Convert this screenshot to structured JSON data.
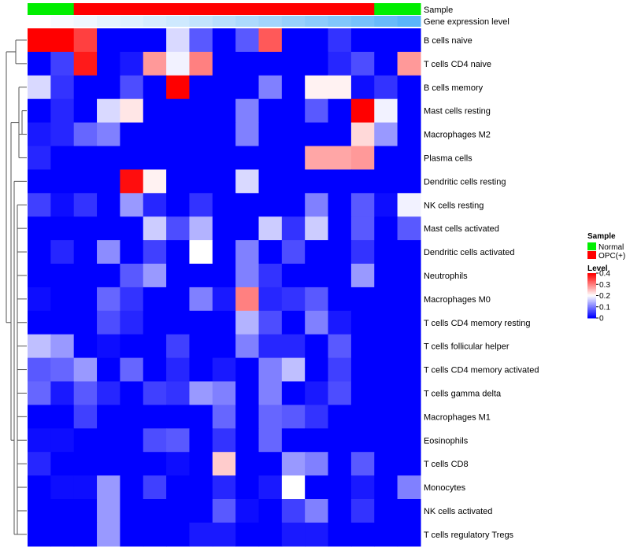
{
  "chart_data": {
    "type": "heatmap",
    "annotation_tracks": [
      {
        "name": "Sample",
        "values": [
          "Normal",
          "Normal",
          "OPC(+)",
          "OPC(+)",
          "OPC(+)",
          "OPC(+)",
          "OPC(+)",
          "OPC(+)",
          "OPC(+)",
          "OPC(+)",
          "OPC(+)",
          "OPC(+)",
          "OPC(+)",
          "OPC(+)",
          "OPC(+)",
          "Normal",
          "Normal"
        ]
      },
      {
        "name": "Gene expression level",
        "values": [
          0.0,
          0.03,
          0.06,
          0.09,
          0.12,
          0.15,
          0.18,
          0.22,
          0.26,
          0.3,
          0.34,
          0.38,
          0.42,
          0.46,
          0.5,
          0.55,
          0.6
        ]
      }
    ],
    "rows": [
      "B cells naive",
      "T cells CD4 naive",
      "B cells memory",
      "Mast cells resting",
      "Macrophages M2",
      "Plasma cells",
      "Dendritic cells resting",
      "NK cells resting",
      "Mast cells activated",
      "Dendritic cells activated",
      "Neutrophils",
      "Macrophages M0",
      "T cells CD4 memory resting",
      "T cells follicular helper",
      "T cells CD4 memory activated",
      "T cells gamma delta",
      "Macrophages M1",
      "Eosinophils",
      "T cells CD8",
      "Monocytes",
      "NK cells activated",
      "T cells regulatory  Tregs"
    ],
    "values": [
      [
        0.4,
        0.4,
        0.35,
        0,
        0,
        0,
        0.17,
        0.07,
        0,
        0.07,
        0.33,
        0,
        0,
        0.04,
        0,
        0,
        0
      ],
      [
        0,
        0.05,
        0.38,
        0,
        0.02,
        0.28,
        0.19,
        0.3,
        0,
        0,
        0,
        0,
        0,
        0.03,
        0.06,
        0,
        0.28
      ],
      [
        0.17,
        0.04,
        0,
        0,
        0.06,
        0,
        0.4,
        0,
        0,
        0,
        0.1,
        0,
        0.21,
        0.21,
        0.01,
        0.04,
        0
      ],
      [
        0,
        0.03,
        0,
        0.17,
        0.22,
        0,
        0,
        0,
        0,
        0.1,
        0,
        0,
        0.07,
        0,
        0.4,
        0.19,
        0
      ],
      [
        0.02,
        0.03,
        0.08,
        0.1,
        0,
        0,
        0,
        0,
        0,
        0.1,
        0,
        0,
        0,
        0,
        0.23,
        0.12,
        0
      ],
      [
        0.03,
        0,
        0,
        0,
        0,
        0,
        0,
        0,
        0,
        0,
        0,
        0,
        0.27,
        0.27,
        0.28,
        0,
        0
      ],
      [
        0,
        0,
        0,
        0,
        0.39,
        0.21,
        0,
        0,
        0,
        0.17,
        0,
        0,
        0,
        0,
        0,
        0,
        0
      ],
      [
        0.05,
        0.01,
        0.04,
        0,
        0.12,
        0.03,
        0,
        0.04,
        0,
        0,
        0,
        0,
        0.1,
        0,
        0.07,
        0.01,
        0.19
      ],
      [
        0,
        0,
        0,
        0,
        0,
        0.16,
        0.06,
        0.14,
        0,
        0,
        0.16,
        0.04,
        0.16,
        0,
        0.07,
        0,
        0.07
      ],
      [
        0,
        0.03,
        0,
        0.11,
        0,
        0.05,
        0,
        0.2,
        0,
        0.1,
        0,
        0.06,
        0,
        0,
        0.04,
        0,
        0
      ],
      [
        0,
        0,
        0,
        0,
        0.07,
        0.12,
        0,
        0,
        0,
        0.1,
        0.04,
        0,
        0,
        0,
        0.12,
        0,
        0
      ],
      [
        0.01,
        0,
        0,
        0.08,
        0.04,
        0,
        0,
        0.1,
        0.02,
        0.3,
        0.03,
        0.04,
        0.07,
        0,
        0,
        0,
        0
      ],
      [
        0,
        0,
        0,
        0.06,
        0.03,
        0,
        0,
        0,
        0,
        0.14,
        0.06,
        0,
        0.1,
        0.02,
        0,
        0,
        0
      ],
      [
        0.15,
        0.12,
        0,
        0.01,
        0,
        0,
        0.05,
        0,
        0,
        0.1,
        0.03,
        0.03,
        0,
        0.07,
        0,
        0,
        0
      ],
      [
        0.07,
        0.08,
        0.12,
        0,
        0.08,
        0,
        0.03,
        0,
        0.02,
        0,
        0.1,
        0.15,
        0,
        0.05,
        0,
        0,
        0
      ],
      [
        0.08,
        0.02,
        0.07,
        0.03,
        0,
        0.05,
        0.04,
        0.12,
        0.1,
        0,
        0.1,
        0,
        0.02,
        0.06,
        0,
        0,
        0
      ],
      [
        0,
        0,
        0.05,
        0,
        0,
        0,
        0,
        0,
        0.08,
        0,
        0.08,
        0.07,
        0.04,
        0,
        0,
        0,
        0
      ],
      [
        0.01,
        0.01,
        0,
        0,
        0,
        0.06,
        0.07,
        0,
        0.04,
        0,
        0.08,
        0,
        0,
        0,
        0,
        0,
        0
      ],
      [
        0.03,
        0,
        0,
        0,
        0,
        0,
        0.01,
        0,
        0.24,
        0,
        0,
        0.12,
        0.1,
        0,
        0.07,
        0,
        0
      ],
      [
        0,
        0.01,
        0.01,
        0.12,
        0,
        0.05,
        0,
        0,
        0.03,
        0,
        0.02,
        0.2,
        0,
        0,
        0.02,
        0,
        0.1
      ],
      [
        0,
        0,
        0,
        0.12,
        0,
        0,
        0,
        0,
        0.07,
        0.01,
        0,
        0.05,
        0.1,
        0,
        0.04,
        0,
        0
      ],
      [
        0,
        0,
        0,
        0.12,
        0,
        0,
        0,
        0.02,
        0.02,
        0,
        0,
        0.02,
        0.02,
        0,
        0,
        0,
        0
      ]
    ],
    "legends": {
      "sample": {
        "title": "Sample",
        "entries": [
          {
            "label": "Normal",
            "color": "#00ee00"
          },
          {
            "label": "OPC(+)",
            "color": "#ff0000"
          }
        ]
      },
      "level": {
        "title": "Level",
        "range": [
          0,
          0.4
        ],
        "ticks": [
          "0.4",
          "0.3",
          "0.2",
          "0.1",
          "0"
        ],
        "colors": [
          "#0000ff",
          "#ffffff",
          "#ff0000"
        ]
      }
    }
  }
}
